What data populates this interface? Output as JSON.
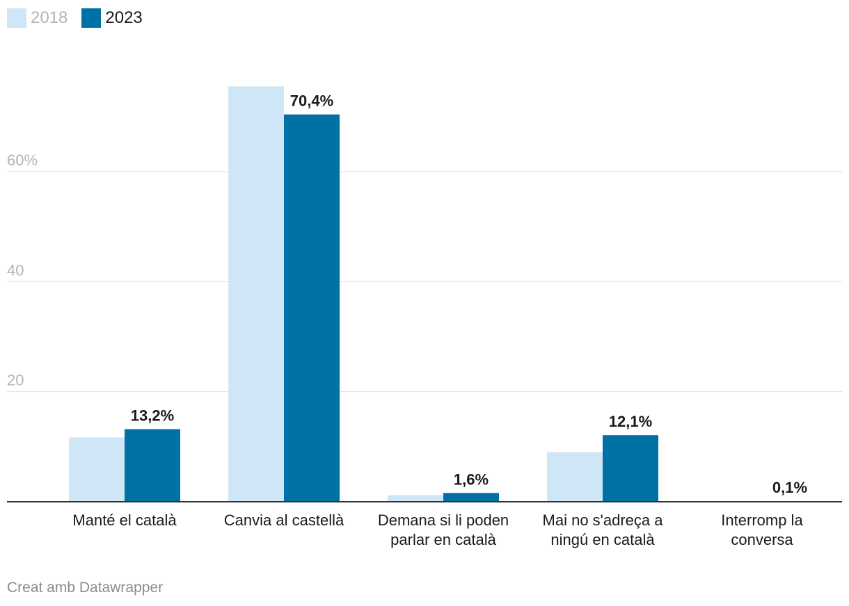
{
  "chart_data": {
    "type": "bar",
    "title": "",
    "xlabel": "",
    "ylabel": "",
    "ylim": [
      0,
      75
    ],
    "yticks": [
      {
        "value": 20,
        "label": "20"
      },
      {
        "value": 40,
        "label": "40"
      },
      {
        "value": 60,
        "label": "60%"
      }
    ],
    "grid": true,
    "legend_position": "top-left",
    "categories": [
      [
        "Manté el català"
      ],
      [
        "Canvia al castellà"
      ],
      [
        "Demana si li poden",
        "parlar en català"
      ],
      [
        "Mai no s'adreça a",
        "ningú en català"
      ],
      [
        "Interromp la",
        "conversa"
      ]
    ],
    "series": [
      {
        "name": "2018",
        "color": "#cfe6f6",
        "values": [
          11.7,
          75.5,
          1.2,
          9.0,
          0.0
        ],
        "labels": [
          "",
          "",
          "",
          "",
          ""
        ]
      },
      {
        "name": "2023",
        "color": "#0071a4",
        "values": [
          13.2,
          70.4,
          1.6,
          12.1,
          0.1
        ],
        "labels": [
          "13,2%",
          "70,4%",
          "1,6%",
          "12,1%",
          "0,1%"
        ]
      }
    ]
  },
  "legend": [
    {
      "label": "2018",
      "color": "#cfe6f6",
      "text_color": "#b4b4b4"
    },
    {
      "label": "2023",
      "color": "#0071a4",
      "text_color": "#1a1a1a"
    }
  ],
  "footer": {
    "credit": "Creat amb Datawrapper"
  }
}
